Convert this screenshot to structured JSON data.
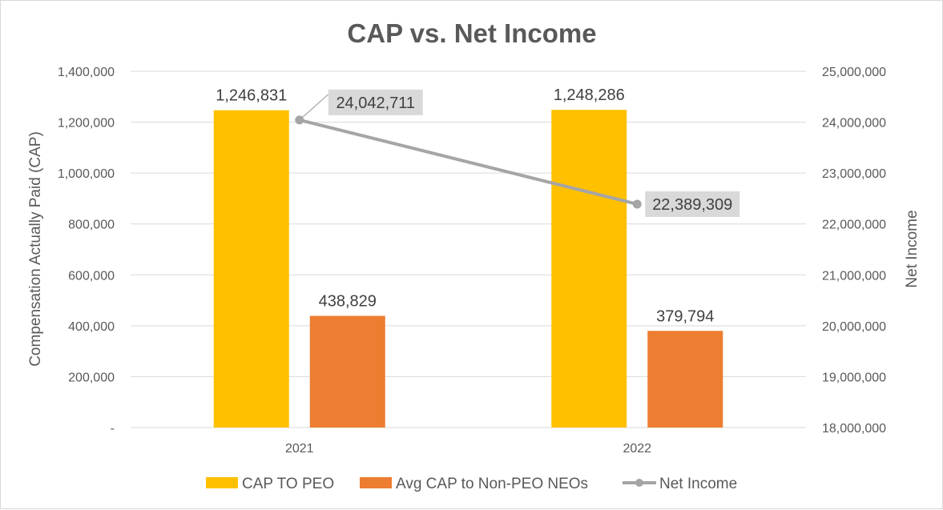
{
  "chart_data": {
    "type": "bar",
    "title": "CAP vs. Net Income",
    "categories": [
      "2021",
      "2022"
    ],
    "ylabel": "Compensation Actually Paid (CAP)",
    "y2label": "Net Income",
    "ylim": [
      0,
      1400000
    ],
    "y2lim": [
      18000000,
      25000000
    ],
    "yticks": [
      "-",
      "200,000",
      "400,000",
      "600,000",
      "800,000",
      "1,000,000",
      "1,200,000",
      "1,400,000"
    ],
    "y2ticks": [
      "18,000,000",
      "19,000,000",
      "20,000,000",
      "21,000,000",
      "22,000,000",
      "23,000,000",
      "24,000,000",
      "25,000,000"
    ],
    "series": [
      {
        "name": "CAP TO PEO",
        "type": "bar",
        "axis": "primary",
        "color": "#FFC000",
        "values": [
          1246831,
          1248286
        ],
        "labels": [
          "1,246,831",
          "1,248,286"
        ]
      },
      {
        "name": "Avg CAP to Non-PEO NEOs",
        "type": "bar",
        "axis": "primary",
        "color": "#ED7D31",
        "values": [
          438829,
          379794
        ],
        "labels": [
          "438,829",
          "379,794"
        ]
      },
      {
        "name": "Net Income",
        "type": "line",
        "axis": "secondary",
        "color": "#A5A5A5",
        "values": [
          24042711,
          22389309
        ],
        "labels": [
          "24,042,711",
          "22,389,309"
        ]
      }
    ],
    "grid": true,
    "legend": "bottom"
  }
}
